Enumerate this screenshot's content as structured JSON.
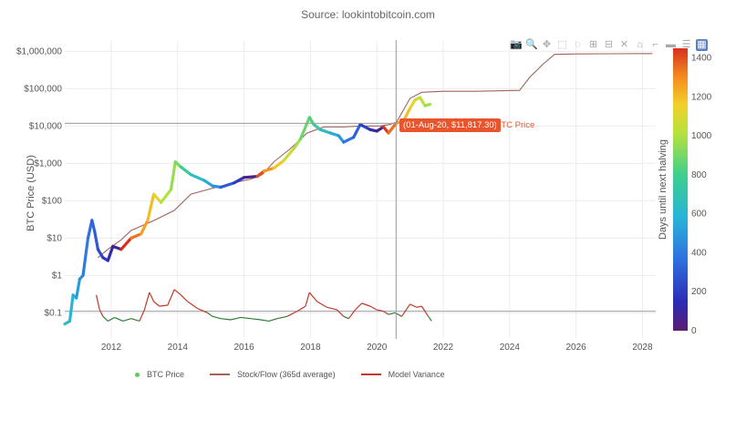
{
  "source": "Source: lookintobitcoin.com",
  "toolbar": [
    {
      "name": "camera-icon",
      "glyph": "📷"
    },
    {
      "name": "zoom-icon",
      "glyph": "🔍"
    },
    {
      "name": "pan-icon",
      "glyph": "✥"
    },
    {
      "name": "box-select-icon",
      "glyph": "⬚"
    },
    {
      "name": "lasso-icon",
      "glyph": "◌"
    },
    {
      "name": "zoom-in-icon",
      "glyph": "⊞"
    },
    {
      "name": "zoom-out-icon",
      "glyph": "⊟"
    },
    {
      "name": "autoscale-icon",
      "glyph": "✕"
    },
    {
      "name": "home-icon",
      "glyph": "⌂"
    },
    {
      "name": "spike-lines-icon",
      "glyph": "⌐"
    },
    {
      "name": "hover-closest-icon",
      "glyph": "▬"
    },
    {
      "name": "hover-compare-icon",
      "glyph": "☰"
    },
    {
      "name": "plotly-logo-icon",
      "glyph": "▦"
    }
  ],
  "hover": {
    "label": "(01-Aug-20, $11,817.30)",
    "series": "BTC Price"
  },
  "colors": {
    "btc_line": "#5ec962",
    "sf_line": "#a0635c",
    "variance_line": "#c0392b",
    "variance_low": "#2e7d32",
    "crosshair": "#999999",
    "hover": "#e8542c"
  },
  "chart_data": {
    "type": "line",
    "ylabel": "BTC Price (USD)",
    "colorbar_title": "Days until next halving",
    "y_scale": "log",
    "xlim": [
      2010.6,
      2028.4
    ],
    "ylim": [
      0.02,
      2000000
    ],
    "x_ticks": [
      "2012",
      "2014",
      "2016",
      "2018",
      "2020",
      "2022",
      "2024",
      "2026",
      "2028"
    ],
    "y_ticks": [
      {
        "label": "$1,000,000",
        "value": 1000000
      },
      {
        "label": "$100,000",
        "value": 100000
      },
      {
        "label": "$10,000",
        "value": 10000
      },
      {
        "label": "$1,000",
        "value": 1000
      },
      {
        "label": "$100",
        "value": 100
      },
      {
        "label": "$10",
        "value": 10
      },
      {
        "label": "$1",
        "value": 1
      },
      {
        "label": "$0.1",
        "value": 0.1
      }
    ],
    "colorbar_ticks": [
      0,
      200,
      400,
      600,
      800,
      1000,
      1200,
      1400
    ],
    "colorbar_range": [
      0,
      1450
    ],
    "crosshair": {
      "x": 2020.58,
      "y": 11817.3
    },
    "series": [
      {
        "name": "BTC Price",
        "x": [
          2010.6,
          2010.75,
          2010.85,
          2010.95,
          2011.05,
          2011.15,
          2011.3,
          2011.42,
          2011.5,
          2011.6,
          2011.75,
          2011.9,
          2012.05,
          2012.3,
          2012.6,
          2012.9,
          2013.1,
          2013.28,
          2013.5,
          2013.8,
          2013.93,
          2014.1,
          2014.4,
          2014.8,
          2015.05,
          2015.3,
          2015.7,
          2016.0,
          2016.4,
          2016.6,
          2016.9,
          2017.2,
          2017.5,
          2017.7,
          2017.97,
          2018.1,
          2018.3,
          2018.6,
          2018.85,
          2019.0,
          2019.3,
          2019.5,
          2019.8,
          2020.0,
          2020.2,
          2020.35,
          2020.58,
          2020.8,
          2021.0,
          2021.15,
          2021.3,
          2021.45,
          2021.6
        ],
        "values": [
          0.05,
          0.06,
          0.3,
          0.25,
          0.8,
          1.0,
          10,
          30,
          15,
          5,
          3,
          2.5,
          6,
          5,
          10,
          13,
          30,
          150,
          90,
          200,
          1100,
          800,
          500,
          350,
          250,
          230,
          300,
          420,
          450,
          620,
          750,
          1200,
          2500,
          4500,
          17000,
          11000,
          8000,
          6500,
          5500,
          3700,
          5000,
          11000,
          8000,
          7300,
          9500,
          6500,
          11817,
          13500,
          30000,
          50000,
          58000,
          35000,
          38000
        ],
        "days_until_halving": [
          700,
          650,
          600,
          560,
          500,
          460,
          400,
          360,
          330,
          300,
          240,
          190,
          130,
          60,
          1450,
          1340,
          1260,
          1200,
          1120,
          1010,
          960,
          900,
          790,
          640,
          550,
          460,
          300,
          190,
          50,
          1400,
          1280,
          1180,
          1060,
          990,
          880,
          830,
          750,
          640,
          550,
          490,
          380,
          310,
          210,
          130,
          60,
          1440,
          1350,
          1270,
          1200,
          1140,
          1080,
          1030,
          970
        ]
      },
      {
        "name": "Stock/Flow (365d average)",
        "x": [
          2011.6,
          2011.9,
          2012.3,
          2012.6,
          2012.85,
          2013.3,
          2013.9,
          2014.4,
          2015.0,
          2015.6,
          2016.2,
          2016.55,
          2016.9,
          2017.4,
          2017.9,
          2018.4,
          2019.0,
          2019.6,
          2020.1,
          2020.4,
          2020.6,
          2021.0,
          2021.35,
          2022.0,
          2023.0,
          2024.3,
          2024.6,
          2025.0,
          2025.35,
          2026.0,
          2027.0,
          2028.3
        ],
        "values": [
          3,
          5,
          9,
          16,
          20,
          30,
          55,
          150,
          210,
          290,
          380,
          500,
          1100,
          2500,
          6500,
          9500,
          9500,
          10000,
          10000,
          11000,
          13000,
          55000,
          80000,
          85000,
          85000,
          90000,
          200000,
          450000,
          830000,
          850000,
          860000,
          870000
        ]
      },
      {
        "name": "Model Variance",
        "x": [
          2011.55,
          2011.65,
          2011.75,
          2011.9,
          2012.1,
          2012.35,
          2012.6,
          2012.85,
          2013.0,
          2013.15,
          2013.28,
          2013.45,
          2013.7,
          2013.9,
          2014.1,
          2014.3,
          2014.6,
          2014.9,
          2015.05,
          2015.3,
          2015.6,
          2015.9,
          2016.2,
          2016.5,
          2016.75,
          2017.0,
          2017.3,
          2017.6,
          2017.85,
          2017.97,
          2018.2,
          2018.5,
          2018.8,
          2019.0,
          2019.15,
          2019.35,
          2019.55,
          2019.8,
          2020.0,
          2020.2,
          2020.35,
          2020.55,
          2020.75,
          2021.0,
          2021.2,
          2021.35,
          2021.55,
          2021.65
        ],
        "values": [
          0.3,
          0.12,
          0.08,
          0.06,
          0.075,
          0.06,
          0.07,
          0.06,
          0.12,
          0.35,
          0.2,
          0.15,
          0.16,
          0.42,
          0.3,
          0.2,
          0.13,
          0.1,
          0.08,
          0.07,
          0.065,
          0.075,
          0.07,
          0.065,
          0.06,
          0.07,
          0.08,
          0.11,
          0.15,
          0.35,
          0.2,
          0.14,
          0.12,
          0.08,
          0.07,
          0.12,
          0.18,
          0.15,
          0.12,
          0.11,
          0.09,
          0.1,
          0.08,
          0.17,
          0.14,
          0.15,
          0.08,
          0.06
        ]
      }
    ],
    "reference_lines": [
      {
        "value": 0.11
      }
    ]
  }
}
